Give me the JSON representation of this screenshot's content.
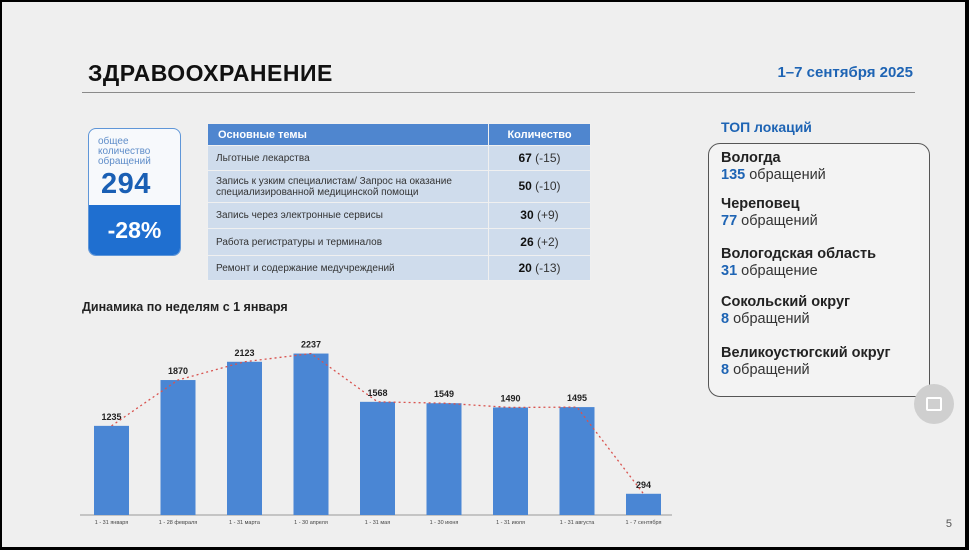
{
  "slide": {
    "title": "ЗДРАВООХРАНЕНИЕ",
    "date_range": "1–7 сентября 2025",
    "page_number": "5"
  },
  "total": {
    "caption": "общее количество обращений",
    "value": "294",
    "change": "-28%"
  },
  "topics_table": {
    "headers": [
      "Основные темы",
      "Количество"
    ],
    "rows": [
      {
        "topic": "Льготные лекарства",
        "count": "67",
        "delta": "(-15)"
      },
      {
        "topic": "Запись к узким специалистам/ Запрос на оказание специализированной медицинской помощи",
        "count": "50",
        "delta": "(-10)"
      },
      {
        "topic": "Запись через электронные сервисы",
        "count": "30",
        "delta": "(+9)"
      },
      {
        "topic": "Работа регистратуры и терминалов",
        "count": "26",
        "delta": "(+2)"
      },
      {
        "topic": "Ремонт и содержание медучреждений",
        "count": "20",
        "delta": "(-13)"
      }
    ]
  },
  "chart_heading": "Динамика по неделям с 1 января",
  "chart_data": {
    "type": "bar",
    "title": "Динамика по неделям с 1 января",
    "categories": [
      "1 - 31 января",
      "1 - 28 февраля",
      "1 - 31 марта",
      "1 - 30 апреля",
      "1 - 31 мая",
      "1 - 30 июня",
      "1 - 31 июля",
      "1 - 31 августа",
      "1 - 7 сентября"
    ],
    "values": [
      1235,
      1870,
      2123,
      2237,
      1568,
      1549,
      1490,
      1495,
      294
    ],
    "trend_line": "dotted",
    "colors": {
      "bar": "#4a86d4",
      "trend": "#d9534f"
    },
    "ylim": [
      0,
      2300
    ]
  },
  "top_locations": {
    "title": "ТОП локаций",
    "items": [
      {
        "name": "Вологда",
        "count": "135",
        "unit": "обращений"
      },
      {
        "name": "Череповец",
        "count": "77",
        "unit": "обращений"
      },
      {
        "name": "Вологодская область",
        "count": "31",
        "unit": "обращение"
      },
      {
        "name": "Сокольский округ",
        "count": "8",
        "unit": "обращений"
      },
      {
        "name": "Великоустюгский округ",
        "count": "8",
        "unit": "обращений"
      }
    ]
  },
  "colors": {
    "accent": "#1e64b4",
    "table_header": "#4f86cf",
    "table_row": "#cfdcec"
  }
}
